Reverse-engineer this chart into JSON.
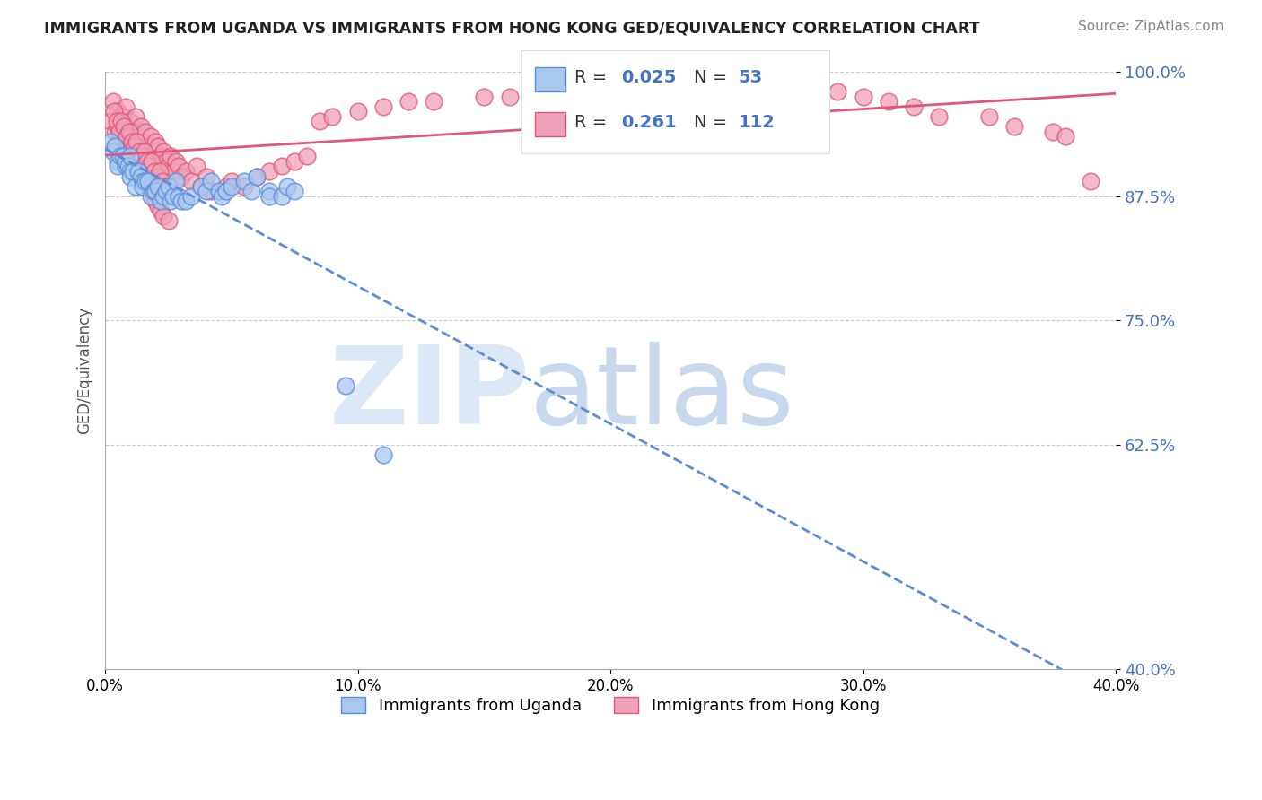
{
  "title": "IMMIGRANTS FROM UGANDA VS IMMIGRANTS FROM HONG KONG GED/EQUIVALENCY CORRELATION CHART",
  "source": "Source: ZipAtlas.com",
  "ylabel_label": "GED/Equivalency",
  "xmin": 0.0,
  "xmax": 40.0,
  "ymin": 40.0,
  "ymax": 100.0,
  "yticks": [
    40.0,
    62.5,
    75.0,
    87.5,
    100.0
  ],
  "ytick_labels": [
    "40.0%",
    "62.5%",
    "75.0%",
    "87.5%",
    "100.0%"
  ],
  "legend_label_uganda": "Immigrants from Uganda",
  "legend_label_hongkong": "Immigrants from Hong Kong",
  "color_uganda_face": "#a8c8f0",
  "color_hongkong_face": "#f0a0b8",
  "color_uganda_edge": "#5b8dd9",
  "color_hongkong_edge": "#e05878",
  "r_uganda": "0.025",
  "n_uganda": "53",
  "r_hongkong": "0.261",
  "n_hongkong": "112",
  "uganda_x": [
    0.2,
    0.3,
    0.4,
    0.5,
    0.5,
    0.6,
    0.7,
    0.8,
    0.8,
    0.9,
    1.0,
    1.0,
    1.0,
    1.1,
    1.2,
    1.3,
    1.4,
    1.5,
    1.5,
    1.6,
    1.7,
    1.8,
    1.9,
    2.0,
    2.1,
    2.2,
    2.3,
    2.4,
    2.5,
    2.6,
    2.7,
    2.8,
    2.9,
    3.0,
    3.2,
    3.4,
    3.8,
    4.0,
    4.2,
    4.5,
    4.6,
    4.8,
    5.0,
    5.5,
    5.8,
    6.0,
    6.5,
    6.5,
    7.0,
    7.2,
    7.5,
    9.5,
    11.0
  ],
  "uganda_y": [
    93.0,
    92.0,
    92.5,
    91.0,
    90.5,
    91.5,
    91.5,
    90.5,
    91.0,
    90.5,
    90.0,
    89.5,
    91.5,
    90.0,
    88.5,
    90.0,
    89.5,
    89.0,
    88.5,
    89.0,
    89.0,
    87.5,
    88.0,
    88.0,
    88.5,
    87.0,
    87.5,
    88.0,
    88.5,
    87.0,
    87.5,
    89.0,
    87.5,
    87.0,
    87.0,
    87.5,
    88.5,
    88.0,
    89.0,
    88.0,
    87.5,
    88.0,
    88.5,
    89.0,
    88.0,
    89.5,
    88.0,
    87.5,
    87.5,
    88.5,
    88.0,
    68.5,
    61.5
  ],
  "hongkong_x": [
    0.2,
    0.3,
    0.4,
    0.5,
    0.5,
    0.6,
    0.6,
    0.7,
    0.8,
    0.8,
    0.9,
    0.9,
    1.0,
    1.0,
    1.0,
    1.1,
    1.1,
    1.2,
    1.2,
    1.3,
    1.3,
    1.4,
    1.4,
    1.5,
    1.5,
    1.6,
    1.6,
    1.7,
    1.7,
    1.8,
    1.8,
    1.9,
    1.9,
    2.0,
    2.0,
    2.1,
    2.1,
    2.2,
    2.2,
    2.3,
    2.3,
    2.4,
    2.5,
    2.5,
    2.6,
    2.7,
    2.8,
    2.9,
    3.0,
    3.2,
    3.4,
    3.6,
    3.8,
    4.0,
    4.2,
    4.5,
    4.8,
    5.0,
    5.5,
    6.0,
    6.5,
    7.0,
    7.5,
    8.0,
    8.5,
    9.0,
    10.0,
    11.0,
    12.0,
    13.0,
    15.0,
    16.0,
    18.0,
    19.0,
    20.0,
    21.0,
    22.0,
    23.0,
    25.0,
    26.0,
    28.0,
    29.0,
    30.0,
    31.0,
    32.0,
    33.0,
    35.0,
    36.0,
    37.5,
    38.0,
    39.0,
    0.35,
    0.45,
    0.55,
    0.65,
    0.75,
    0.85,
    0.95,
    1.05,
    1.15,
    1.25,
    1.35,
    1.45,
    1.55,
    1.65,
    1.75,
    1.85,
    1.95,
    2.05,
    2.15,
    2.25,
    2.35
  ],
  "hongkong_y": [
    95.0,
    97.0,
    94.0,
    96.0,
    94.5,
    95.5,
    93.5,
    95.5,
    96.5,
    93.0,
    94.5,
    92.5,
    95.0,
    93.5,
    92.0,
    94.0,
    91.5,
    95.5,
    91.0,
    93.5,
    90.5,
    94.5,
    90.0,
    93.0,
    89.5,
    94.0,
    89.0,
    92.5,
    88.5,
    93.5,
    88.0,
    92.0,
    87.5,
    93.0,
    87.0,
    92.5,
    86.5,
    91.5,
    86.0,
    92.0,
    85.5,
    91.0,
    90.5,
    85.0,
    91.5,
    90.0,
    91.0,
    90.5,
    89.5,
    90.0,
    89.0,
    90.5,
    88.5,
    89.5,
    88.0,
    88.0,
    88.5,
    89.0,
    88.5,
    89.5,
    90.0,
    90.5,
    91.0,
    91.5,
    95.0,
    95.5,
    96.0,
    96.5,
    97.0,
    97.0,
    97.5,
    97.5,
    98.0,
    98.0,
    98.5,
    98.5,
    99.0,
    99.0,
    99.5,
    99.0,
    98.5,
    98.0,
    97.5,
    97.0,
    96.5,
    95.5,
    95.5,
    94.5,
    94.0,
    93.5,
    89.0,
    96.0,
    95.0,
    94.0,
    95.0,
    94.5,
    93.5,
    94.0,
    93.0,
    92.5,
    93.0,
    92.0,
    91.5,
    92.0,
    91.0,
    90.5,
    91.0,
    90.0,
    89.5,
    90.0,
    89.0,
    88.5
  ]
}
